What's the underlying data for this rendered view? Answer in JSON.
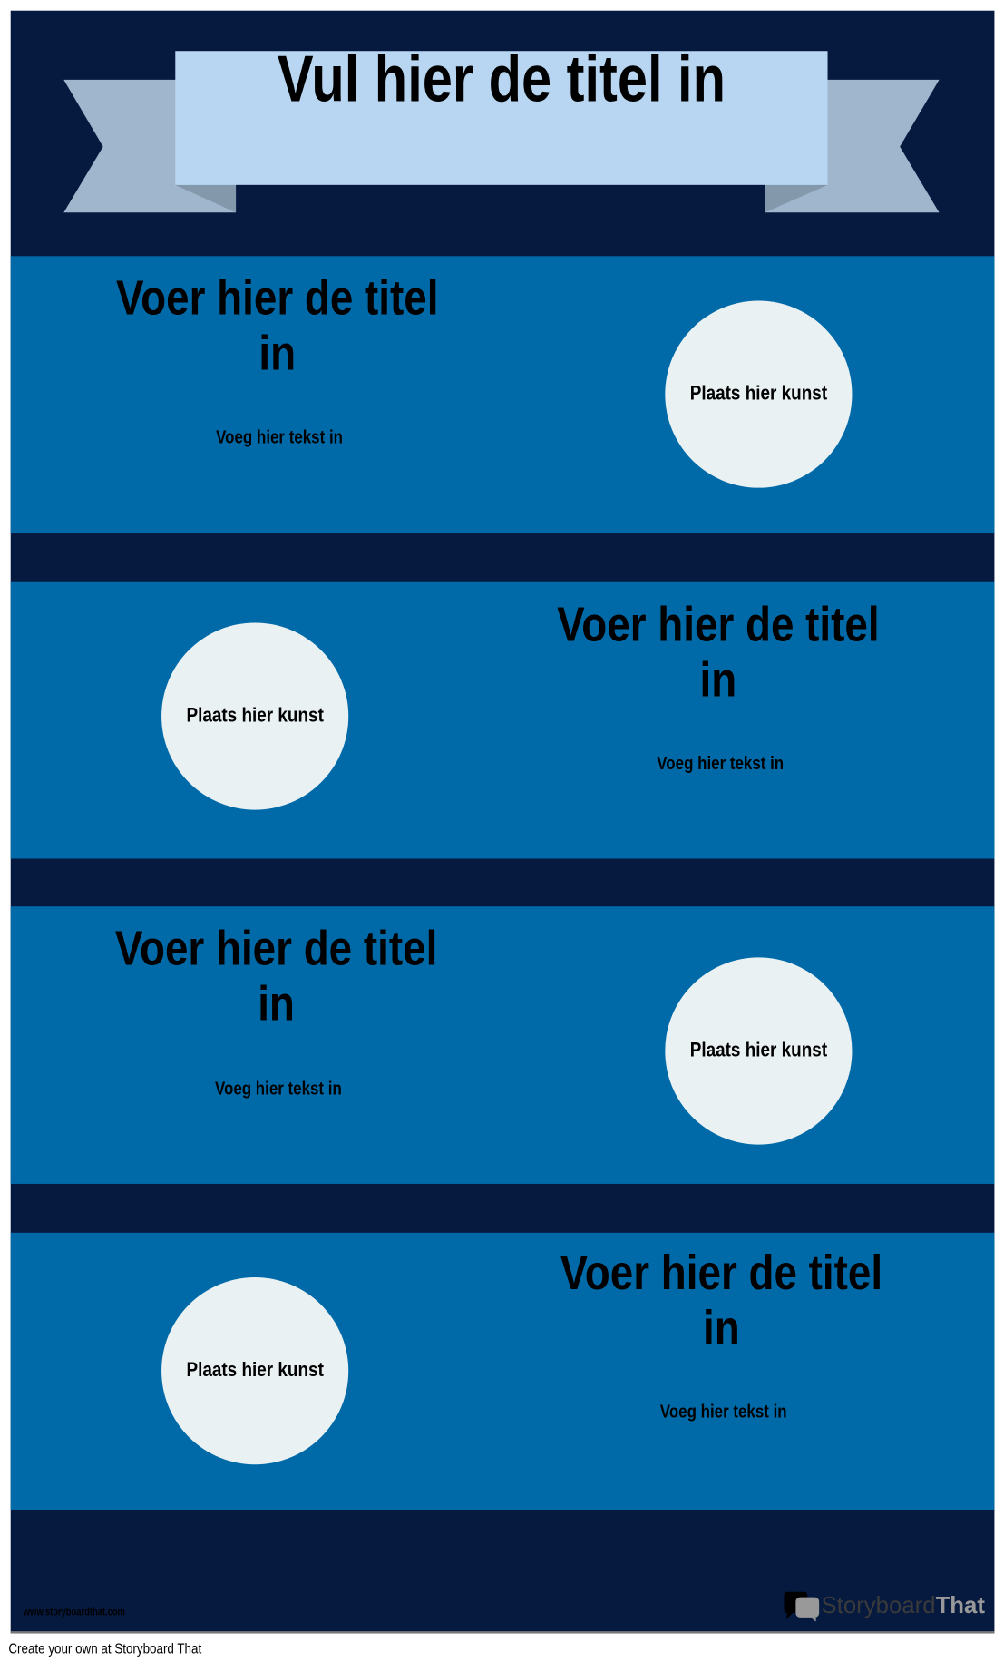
{
  "header": {
    "title": "Vul hier de titel in"
  },
  "sections": [
    {
      "title": "Voer hier de titel in",
      "text": "Voeg hier tekst in",
      "art": "Plaats hier kunst"
    },
    {
      "title": "Voer hier de titel in",
      "text": "Voeg hier tekst in",
      "art": "Plaats hier kunst"
    },
    {
      "title": "Voer hier de titel in",
      "text": "Voeg hier tekst in",
      "art": "Plaats hier kunst"
    },
    {
      "title": "Voer hier de titel in",
      "text": "Voeg hier tekst in",
      "art": "Plaats hier kunst"
    }
  ],
  "footer": {
    "url": "www.storyboardthat.com",
    "logo_a": "Storyboard",
    "logo_b": "That",
    "create": "Create your own at Storyboard That"
  },
  "colors": {
    "background": "#061a40",
    "band": "#006aa9",
    "banner": "#b8d6f1",
    "ribbon_tail": "#a0b6cd",
    "circle": "#e9f1f2"
  }
}
